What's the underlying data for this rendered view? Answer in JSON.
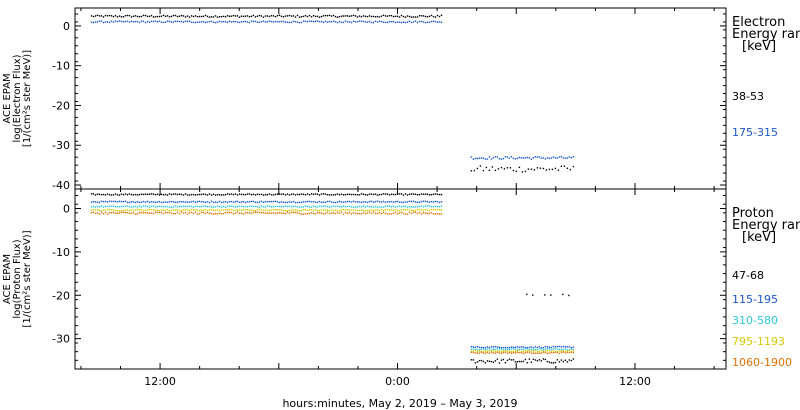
{
  "chart_data": [
    {
      "type": "scatter",
      "panel": "electron",
      "ylabel": [
        "ACE EPAM",
        "log(Electron Flux)",
        "[1/(cm²s ster MeV)]"
      ],
      "ylim": [
        -41,
        4.5
      ],
      "yticks": [
        0,
        -10,
        -20,
        -30,
        -40
      ],
      "legend_title": [
        "Electron",
        "Energy ran",
        "[keV]"
      ],
      "series": [
        {
          "name": "38-53",
          "color": "#000000",
          "segments": [
            {
              "x0": -15.5,
              "x1": 2.2,
              "y": 2.6,
              "jitter": 0.25
            },
            {
              "x0": 3.7,
              "x1": 8.9,
              "y": -35.8,
              "jitter": 0.8
            }
          ]
        },
        {
          "name": "175-315",
          "color": "#1a56c8",
          "segments": [
            {
              "x0": -15.5,
              "x1": 2.2,
              "y": 1.2,
              "jitter": 0.2
            },
            {
              "x0": 3.7,
              "x1": 8.9,
              "y": -33.0,
              "jitter": 0.35
            }
          ]
        }
      ]
    },
    {
      "type": "scatter",
      "panel": "proton",
      "ylabel": [
        "ACE EPAM",
        "log(Proton Flux)",
        "[1/(cm²s ster MeV)]"
      ],
      "ylim": [
        -37,
        4.5
      ],
      "yticks": [
        0,
        -10,
        -20,
        -30
      ],
      "legend_title": [
        "Proton",
        "Energy ran",
        "[keV]"
      ],
      "series": [
        {
          "name": "47-68",
          "color": "#000000",
          "segments": [
            {
              "x0": -15.5,
              "x1": 2.2,
              "y": 3.4,
              "jitter": 0.15
            },
            {
              "x0": 6.5,
              "x1": 8.9,
              "y": -19.8,
              "jitter": 0.2
            },
            {
              "x0": 3.7,
              "x1": 8.9,
              "y": -35.0,
              "jitter": 0.5
            }
          ]
        },
        {
          "name": "115-195",
          "color": "#1a56c8",
          "segments": [
            {
              "x0": -15.5,
              "x1": 2.2,
              "y": 1.7,
              "jitter": 0.15
            },
            {
              "x0": 3.7,
              "x1": 8.9,
              "y": -31.8,
              "jitter": 0.15
            }
          ]
        },
        {
          "name": "310-580",
          "color": "#2ec8d8",
          "segments": [
            {
              "x0": -15.5,
              "x1": 2.2,
              "y": 0.6,
              "jitter": 0.15
            },
            {
              "x0": 3.7,
              "x1": 8.9,
              "y": -32.3,
              "jitter": 0.15
            }
          ]
        },
        {
          "name": "795-1193",
          "color": "#d8c800",
          "segments": [
            {
              "x0": -15.5,
              "x1": 2.2,
              "y": -0.2,
              "jitter": 0.15
            },
            {
              "x0": 3.7,
              "x1": 8.9,
              "y": -32.7,
              "jitter": 0.15
            }
          ]
        },
        {
          "name": "1060-1900",
          "color": "#e07000",
          "segments": [
            {
              "x0": -15.5,
              "x1": 2.2,
              "y": -0.9,
              "jitter": 0.25
            },
            {
              "x0": 3.7,
              "x1": 8.9,
              "y": -33.1,
              "jitter": 0.15
            }
          ]
        }
      ]
    }
  ],
  "x_axis": {
    "xlim": [
      -16.3,
      16.6
    ],
    "label": "hours:minutes, May  2, 2019 – May  3, 2019",
    "major_ticks": [
      {
        "x": -12,
        "label": "12:00"
      },
      {
        "x": 0,
        "label": "0:00"
      },
      {
        "x": 12,
        "label": "12:00"
      }
    ],
    "minor_step": 2
  }
}
